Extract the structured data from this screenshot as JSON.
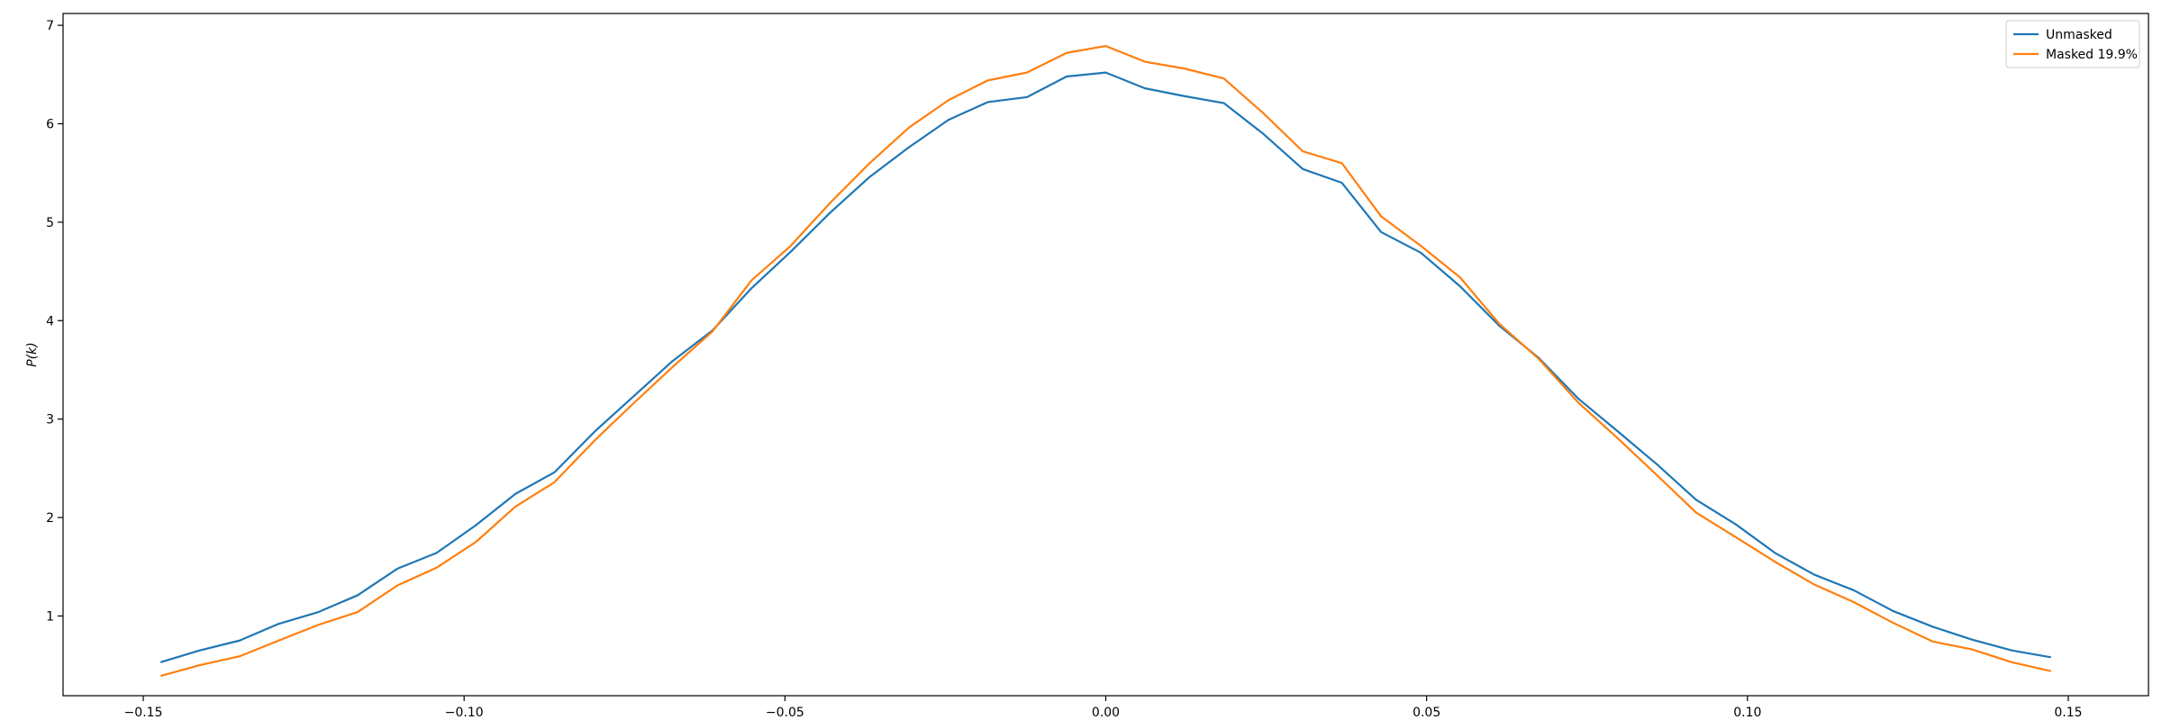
{
  "chart_data": {
    "type": "line",
    "title": "",
    "xlabel": "",
    "ylabel": "P(k)",
    "xlim": [
      -0.1625,
      0.1625
    ],
    "ylim": [
      0.19,
      7.12
    ],
    "grid": false,
    "legend_position": "top-right",
    "x_ticks": [
      -0.15,
      -0.1,
      -0.05,
      0.0,
      0.05,
      0.1,
      0.15
    ],
    "x_tick_labels": [
      "−0.15",
      "−0.10",
      "−0.05",
      "0.00",
      "0.05",
      "0.10",
      "0.15"
    ],
    "y_ticks": [
      1,
      2,
      3,
      4,
      5,
      6,
      7
    ],
    "y_tick_labels": [
      "1",
      "2",
      "3",
      "4",
      "5",
      "6",
      "7"
    ],
    "x": [
      -0.1473,
      -0.1412,
      -0.135,
      -0.1289,
      -0.1227,
      -0.1166,
      -0.1104,
      -0.1043,
      -0.0982,
      -0.092,
      -0.0859,
      -0.0797,
      -0.0736,
      -0.0675,
      -0.0613,
      -0.0552,
      -0.0491,
      -0.0429,
      -0.0368,
      -0.0307,
      -0.0245,
      -0.0184,
      -0.0123,
      -0.0061,
      0.0,
      0.0061,
      0.0123,
      0.0184,
      0.0245,
      0.0307,
      0.0368,
      0.0429,
      0.0491,
      0.0552,
      0.0613,
      0.0675,
      0.0736,
      0.0797,
      0.0859,
      0.092,
      0.0982,
      0.1043,
      0.1104,
      0.1166,
      0.1227,
      0.1289,
      0.135,
      0.1412,
      0.1473
    ],
    "series": [
      {
        "name": "Unmasked",
        "color": "#1f77b4",
        "values": [
          0.53,
          0.65,
          0.75,
          0.92,
          1.04,
          1.21,
          1.48,
          1.64,
          1.92,
          2.24,
          2.46,
          2.87,
          3.23,
          3.59,
          3.9,
          4.33,
          4.7,
          5.1,
          5.46,
          5.76,
          6.04,
          6.22,
          6.27,
          6.48,
          6.52,
          6.36,
          6.28,
          6.21,
          5.9,
          5.54,
          5.4,
          4.9,
          4.69,
          4.35,
          3.95,
          3.62,
          3.21,
          2.88,
          2.54,
          2.18,
          1.93,
          1.64,
          1.42,
          1.26,
          1.05,
          0.89,
          0.76,
          0.65,
          0.58
        ]
      },
      {
        "name": "Masked 19.9%",
        "color": "#ff7f0e",
        "values": [
          0.39,
          0.5,
          0.59,
          0.75,
          0.91,
          1.04,
          1.31,
          1.49,
          1.75,
          2.11,
          2.36,
          2.78,
          3.16,
          3.53,
          3.89,
          4.41,
          4.76,
          5.2,
          5.6,
          5.96,
          6.24,
          6.44,
          6.52,
          6.72,
          6.79,
          6.63,
          6.56,
          6.46,
          6.11,
          5.72,
          5.6,
          5.06,
          4.76,
          4.44,
          3.97,
          3.61,
          3.17,
          2.81,
          2.43,
          2.05,
          1.8,
          1.55,
          1.32,
          1.14,
          0.93,
          0.74,
          0.66,
          0.53,
          0.44
        ]
      }
    ]
  }
}
